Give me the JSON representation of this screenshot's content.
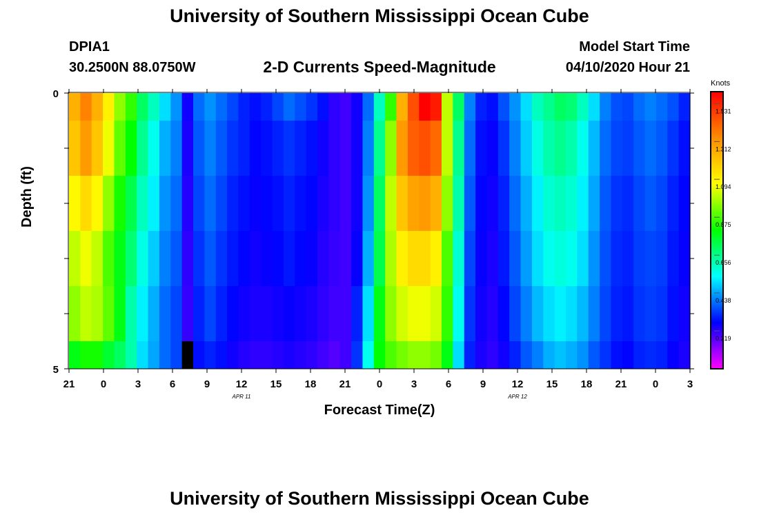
{
  "header": {
    "title": "University of Southern Mississippi Ocean Cube",
    "station_id": "DPIA1",
    "station_coords": "30.2500N 88.0750W",
    "plot_title": "2-D Currents Speed-Magnitude",
    "model_start_label": "Model Start Time",
    "model_start_value": "04/10/2020 Hour 21",
    "footer_title": "University of Southern Mississippi Ocean Cube"
  },
  "colors": {
    "scale": [
      "#ff00ff",
      "#0000ff",
      "#00ffff",
      "#00ff00",
      "#ffff00",
      "#ff8c00",
      "#ff0000"
    ],
    "missing": "#000000"
  },
  "chart_data": {
    "type": "heatmap",
    "xlabel": "Forecast Time(Z)",
    "ylabel": "Depth (ft)",
    "x_tick_labels": [
      "21",
      "0",
      "3",
      "6",
      "9",
      "12",
      "15",
      "18",
      "21",
      "0",
      "3",
      "6",
      "9",
      "12",
      "15",
      "18",
      "21",
      "0",
      "3"
    ],
    "x_date_labels": [
      {
        "label": "APR 11",
        "at_tick": 5
      },
      {
        "label": "APR 12",
        "at_tick": 13
      }
    ],
    "y_tick_labels": [
      "0",
      "5"
    ],
    "ylim": [
      0,
      5
    ],
    "colorbar": {
      "unit": "Knots",
      "range": [
        0,
        1.6
      ],
      "tick_labels": [
        "1.531",
        "1.312",
        "1.094",
        "0.875",
        "0.656",
        "0.438",
        "0.219"
      ],
      "tick_values": [
        1.531,
        1.312,
        1.094,
        0.875,
        0.656,
        0.438,
        0.219
      ]
    },
    "time_hours": [
      0,
      1,
      2,
      3,
      4,
      5,
      6,
      7,
      8,
      9,
      10,
      11,
      12,
      13,
      14,
      15,
      16,
      17,
      18,
      19,
      20,
      21,
      22,
      23,
      24,
      25,
      26,
      27,
      28,
      29,
      30,
      31,
      32,
      33,
      34,
      35,
      36,
      37,
      38,
      39,
      40,
      41,
      42,
      43,
      44,
      45,
      46,
      47,
      48,
      49,
      50,
      51,
      52,
      53,
      54
    ],
    "depth_layers": [
      "0-1",
      "1-2",
      "2-3",
      "3-4",
      "4-4.5",
      "4.5-5"
    ],
    "values": [
      [
        1.25,
        1.35,
        1.25,
        1.1,
        0.95,
        0.85,
        0.7,
        0.6,
        0.5,
        0.42,
        0.25,
        0.38,
        0.42,
        0.38,
        0.34,
        0.3,
        0.28,
        0.3,
        0.34,
        0.38,
        0.35,
        0.32,
        0.28,
        0.22,
        0.2,
        0.25,
        0.38,
        0.6,
        0.85,
        1.25,
        1.45,
        1.6,
        1.55,
        1.0,
        0.7,
        0.4,
        0.3,
        0.28,
        0.35,
        0.42,
        0.5,
        0.6,
        0.65,
        0.7,
        0.68,
        0.6,
        0.5,
        0.4,
        0.35,
        0.34,
        0.38,
        0.4,
        0.38,
        0.35,
        0.3
      ],
      [
        1.2,
        1.3,
        1.2,
        1.05,
        0.9,
        0.8,
        0.65,
        0.55,
        0.45,
        0.4,
        0.24,
        0.36,
        0.4,
        0.36,
        0.32,
        0.3,
        0.27,
        0.28,
        0.3,
        0.32,
        0.3,
        0.28,
        0.25,
        0.22,
        0.2,
        0.25,
        0.4,
        0.65,
        0.95,
        1.3,
        1.42,
        1.45,
        1.4,
        1.0,
        0.65,
        0.38,
        0.28,
        0.26,
        0.32,
        0.4,
        0.48,
        0.56,
        0.62,
        0.65,
        0.62,
        0.55,
        0.46,
        0.38,
        0.34,
        0.33,
        0.36,
        0.38,
        0.36,
        0.32,
        0.28
      ],
      [
        1.08,
        1.15,
        1.08,
        0.95,
        0.82,
        0.72,
        0.6,
        0.52,
        0.42,
        0.38,
        0.23,
        0.34,
        0.38,
        0.34,
        0.3,
        0.28,
        0.26,
        0.27,
        0.28,
        0.3,
        0.28,
        0.27,
        0.24,
        0.22,
        0.2,
        0.25,
        0.42,
        0.7,
        1.0,
        1.2,
        1.28,
        1.3,
        1.25,
        0.95,
        0.62,
        0.36,
        0.27,
        0.25,
        0.3,
        0.38,
        0.45,
        0.52,
        0.58,
        0.6,
        0.58,
        0.52,
        0.44,
        0.36,
        0.32,
        0.31,
        0.34,
        0.36,
        0.34,
        0.3,
        0.27
      ],
      [
        1.0,
        1.05,
        1.0,
        0.88,
        0.78,
        0.68,
        0.56,
        0.48,
        0.4,
        0.36,
        0.22,
        0.32,
        0.36,
        0.32,
        0.29,
        0.27,
        0.25,
        0.26,
        0.27,
        0.29,
        0.27,
        0.26,
        0.23,
        0.21,
        0.2,
        0.26,
        0.45,
        0.72,
        0.98,
        1.1,
        1.15,
        1.15,
        1.1,
        0.88,
        0.58,
        0.34,
        0.26,
        0.24,
        0.29,
        0.36,
        0.43,
        0.5,
        0.55,
        0.57,
        0.55,
        0.5,
        0.42,
        0.35,
        0.31,
        0.3,
        0.33,
        0.34,
        0.33,
        0.29,
        0.26
      ],
      [
        0.95,
        1.0,
        0.98,
        0.9,
        0.78,
        0.62,
        0.52,
        0.45,
        0.38,
        0.34,
        0.21,
        0.3,
        0.34,
        0.3,
        0.27,
        0.25,
        0.24,
        0.24,
        0.25,
        0.26,
        0.25,
        0.24,
        0.22,
        0.2,
        0.2,
        0.3,
        0.5,
        0.78,
        0.95,
        1.02,
        1.05,
        1.05,
        1.02,
        0.85,
        0.55,
        0.32,
        0.25,
        0.23,
        0.27,
        0.34,
        0.4,
        0.46,
        0.5,
        0.52,
        0.5,
        0.46,
        0.4,
        0.34,
        0.3,
        0.29,
        0.32,
        0.33,
        0.32,
        0.28,
        0.25
      ],
      [
        0.78,
        0.82,
        0.82,
        0.75,
        0.7,
        0.62,
        0.5,
        0.44,
        0.38,
        0.34,
        null,
        0.28,
        0.3,
        0.28,
        0.25,
        0.23,
        0.22,
        0.22,
        0.23,
        0.24,
        0.23,
        0.22,
        0.2,
        0.18,
        0.2,
        0.32,
        0.55,
        0.8,
        0.88,
        0.92,
        0.95,
        0.95,
        0.92,
        0.78,
        0.5,
        0.3,
        0.24,
        0.22,
        0.25,
        0.3,
        0.36,
        0.4,
        0.45,
        0.47,
        0.45,
        0.42,
        0.36,
        0.32,
        0.28,
        0.27,
        0.3,
        0.31,
        0.3,
        0.26,
        0.24
      ]
    ]
  }
}
